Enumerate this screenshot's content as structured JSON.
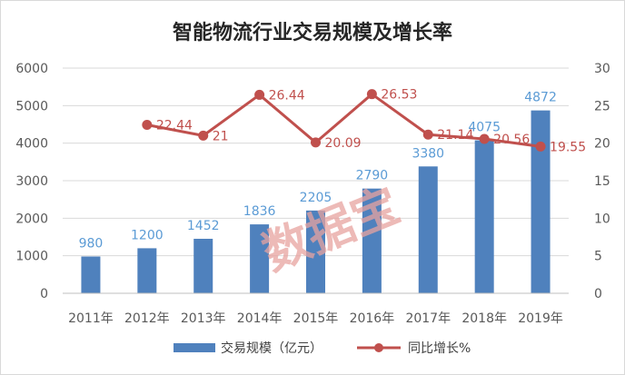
{
  "chart_data": {
    "type": "bar",
    "title": "智能物流行业交易规模及增长率",
    "categories": [
      "2011年",
      "2012年",
      "2013年",
      "2014年",
      "2015年",
      "2016年",
      "2017年",
      "2018年",
      "2019年"
    ],
    "series": [
      {
        "name": "交易规模（亿元）",
        "type": "bar",
        "axis": "left",
        "values": [
          980,
          1200,
          1452,
          1836,
          2205,
          2790,
          3380,
          4075,
          4872
        ],
        "labels": [
          "980",
          "1200",
          "1452",
          "1836",
          "2205",
          "2790",
          "3380",
          "4075",
          "4872"
        ]
      },
      {
        "name": "同比增长%",
        "type": "line",
        "axis": "right",
        "values": [
          null,
          22.44,
          21,
          26.44,
          20.09,
          26.53,
          21.14,
          20.56,
          19.55
        ],
        "labels": [
          "",
          "22.44",
          "21",
          "26.44",
          "20.09",
          "26.53",
          "21.14",
          "20.56",
          "19.55"
        ]
      }
    ],
    "y_left": {
      "min": 0,
      "max": 6000,
      "ticks": [
        "0",
        "1000",
        "2000",
        "3000",
        "4000",
        "5000",
        "6000"
      ]
    },
    "y_right": {
      "min": 0,
      "max": 30,
      "ticks": [
        "0",
        "5",
        "10",
        "15",
        "20",
        "25",
        "30"
      ]
    },
    "grid": true,
    "legend_position": "bottom",
    "colors": {
      "bar": "#4f81bd",
      "bar_label": "#5b9bd5",
      "line": "#c0504d",
      "grid": "#d9d9d9",
      "axis": "#bfbfbf"
    },
    "watermark": "数据宝"
  }
}
